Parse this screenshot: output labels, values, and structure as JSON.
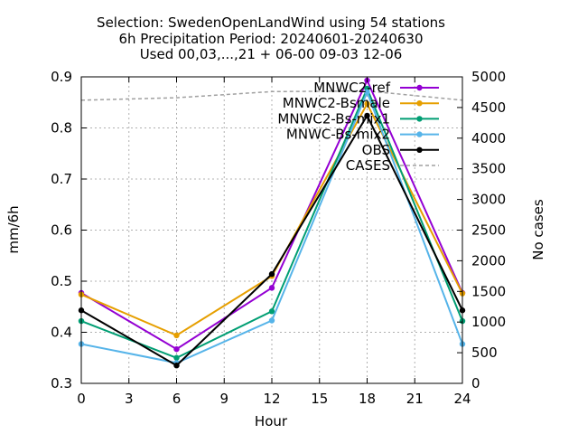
{
  "chart_data": {
    "type": "line",
    "title_lines": [
      "Selection: SwedenOpenLandWind using    54 stations",
      "6h Precipitation   Period: 20240601-20240630",
      "Used 00,03,...,21 + 06-00 09-03 12-06"
    ],
    "xlabel": "Hour",
    "ylabel": "mm/6h",
    "y2label": "No cases",
    "xlim": [
      0,
      24
    ],
    "ylim": [
      0.3,
      0.9
    ],
    "y2lim": [
      0,
      5000
    ],
    "x_ticks": [
      "0",
      "3",
      "6",
      "9",
      "12",
      "15",
      "18",
      "21",
      "24"
    ],
    "y_ticks": [
      "0.3",
      "0.4",
      "0.5",
      "0.6",
      "0.7",
      "0.8",
      "0.9"
    ],
    "y2_ticks": [
      "0",
      "500",
      "1000",
      "1500",
      "2000",
      "2500",
      "3000",
      "3500",
      "4000",
      "4500",
      "5000"
    ],
    "grid": true,
    "legend_position": "top-right",
    "x": [
      0,
      6,
      12,
      18,
      24
    ],
    "series": [
      {
        "name": "MNWC2-ref",
        "color": "#9400d3",
        "axis": "y",
        "values": [
          0.477,
          0.367,
          0.487,
          0.893,
          0.477
        ]
      },
      {
        "name": "MNWC2-Bsmale",
        "color": "#e69f00",
        "axis": "y",
        "values": [
          0.474,
          0.394,
          0.51,
          0.847,
          0.476
        ]
      },
      {
        "name": "MNWC2-Bs-mix1",
        "color": "#009e73",
        "axis": "y",
        "values": [
          0.422,
          0.35,
          0.441,
          0.877,
          0.422
        ]
      },
      {
        "name": "MNWC-Bs-mix2",
        "color": "#56b4e9",
        "axis": "y",
        "values": [
          0.377,
          0.34,
          0.423,
          0.87,
          0.377
        ]
      },
      {
        "name": "OBS",
        "color": "#000000",
        "axis": "y",
        "values": [
          0.443,
          0.335,
          0.514,
          0.824,
          0.443
        ]
      },
      {
        "name": "CASES",
        "color": "#a0a0a0",
        "axis": "y2",
        "dashed": true,
        "values": [
          4620,
          4660,
          4760,
          4770,
          4620
        ]
      }
    ]
  }
}
